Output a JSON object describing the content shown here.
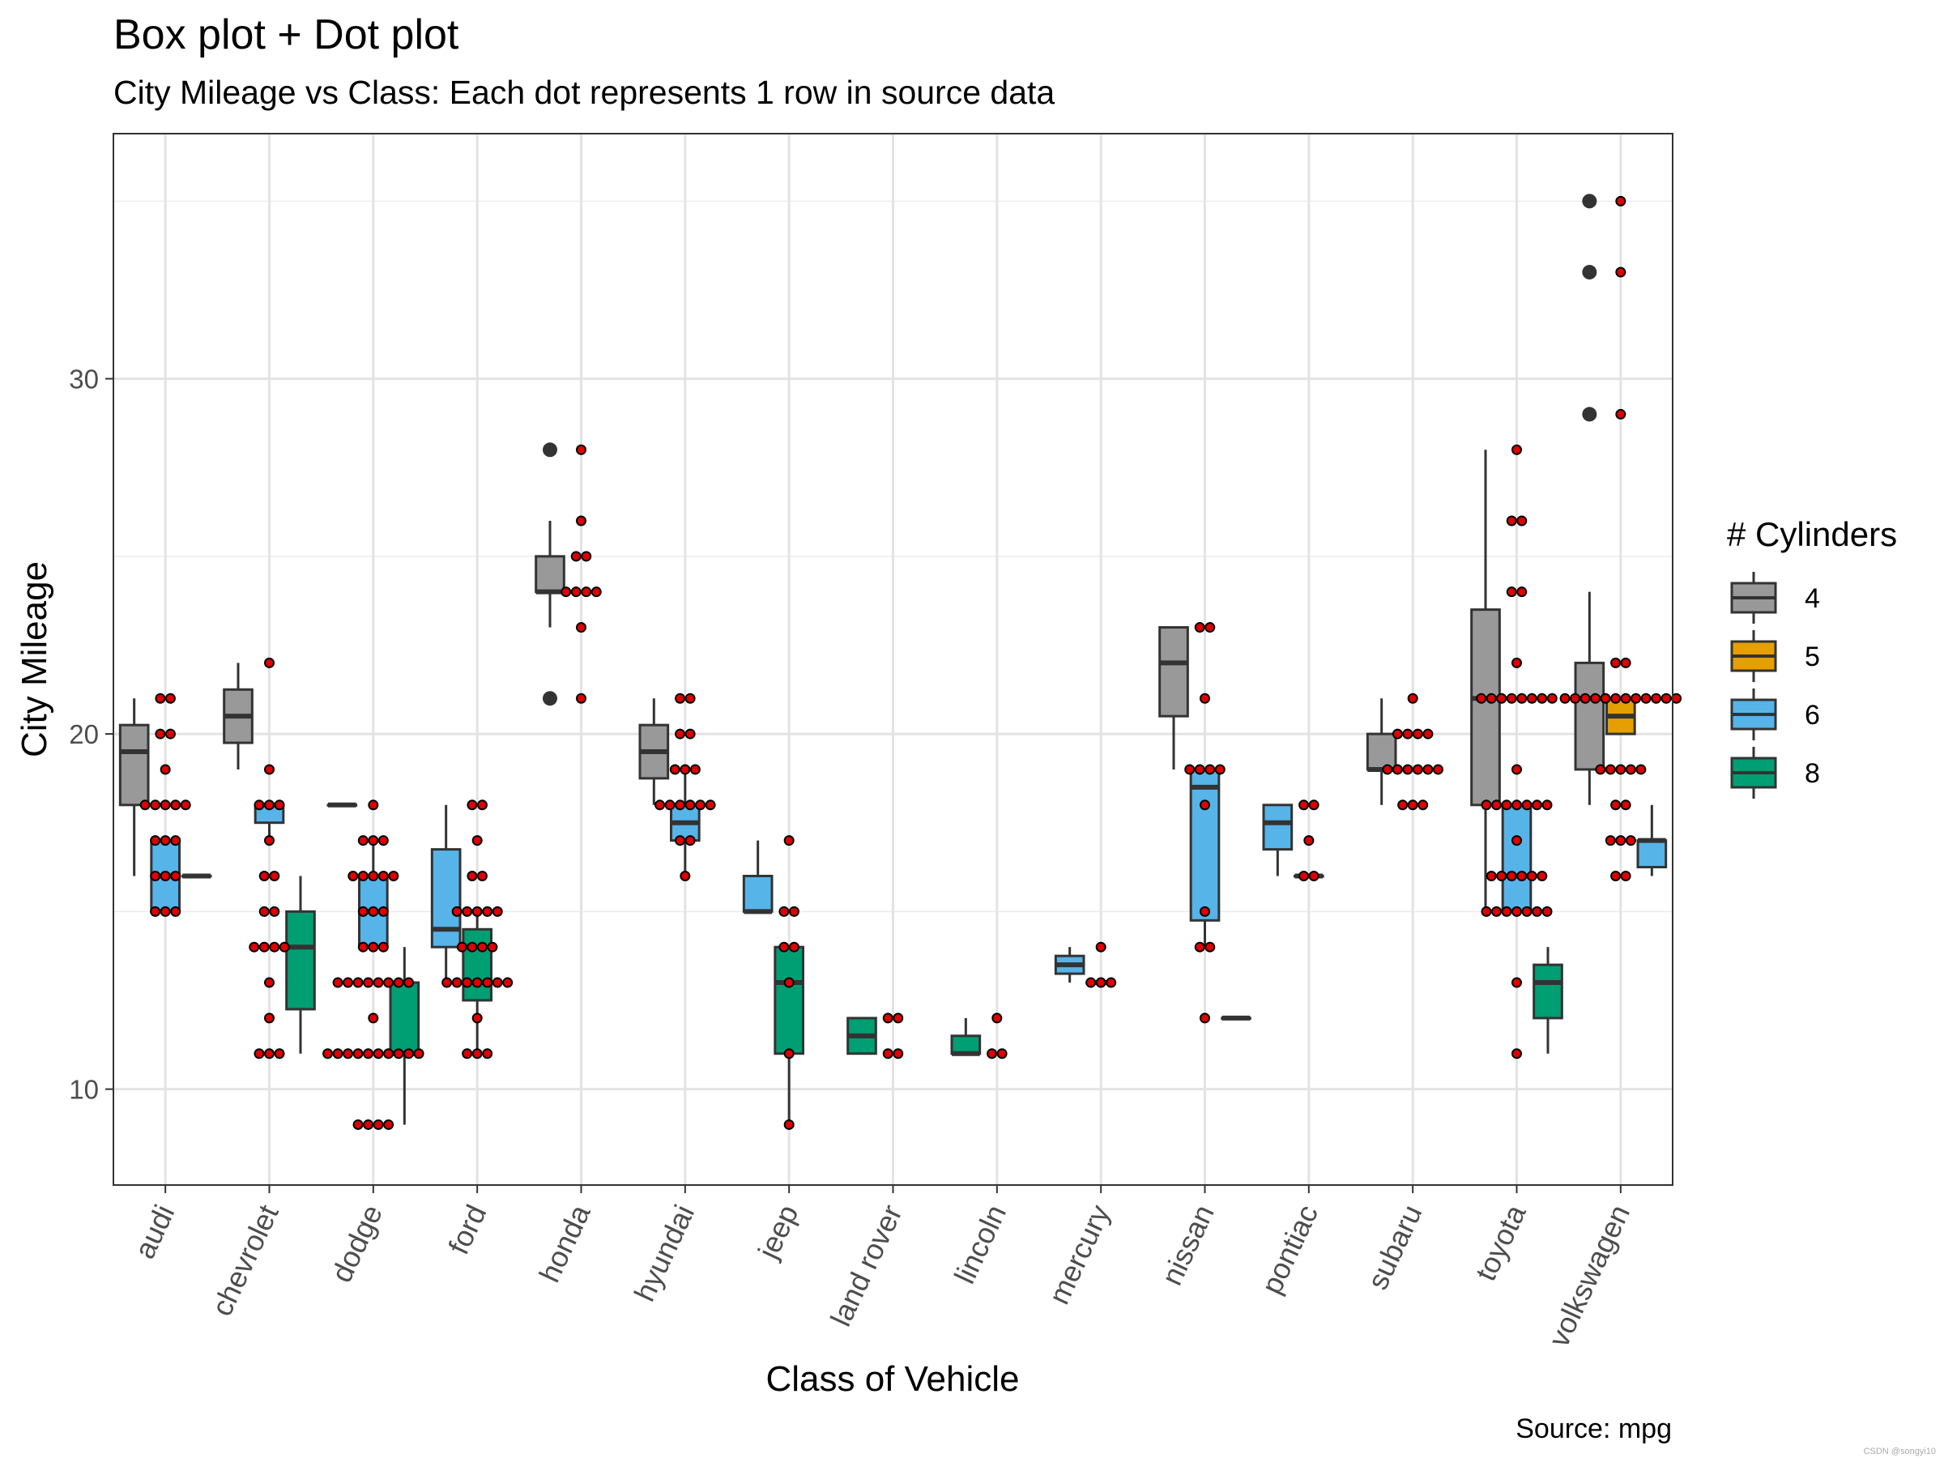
{
  "chart_data": {
    "type": "box",
    "title": "Box plot + Dot plot",
    "subtitle": "City Mileage vs Class: Each dot represents 1 row in source data",
    "caption": "Source: mpg",
    "watermark": "CSDN @songyi10",
    "xlabel": "Class of Vehicle",
    "ylabel": "City Mileage",
    "ylim": [
      7.3,
      36.9
    ],
    "yticks": [
      10,
      20,
      30
    ],
    "ygrid_minor": [
      15,
      25,
      35
    ],
    "categories": [
      "audi",
      "chevrolet",
      "dodge",
      "ford",
      "honda",
      "hyundai",
      "jeep",
      "land rover",
      "lincoln",
      "mercury",
      "nissan",
      "pontiac",
      "subaru",
      "toyota",
      "volkswagen"
    ],
    "legend": {
      "title": "# Cylinders",
      "position": "right",
      "entries": [
        {
          "label": "4",
          "color": "#999999"
        },
        {
          "label": "5",
          "color": "#E69F00"
        },
        {
          "label": "6",
          "color": "#56B4E9"
        },
        {
          "label": "8",
          "color": "#009E73"
        }
      ]
    },
    "colors": {
      "4": "#999999",
      "5": "#E69F00",
      "6": "#56B4E9",
      "8": "#009E73",
      "dot_fill": "#E00000",
      "outline": "#333333"
    },
    "boxes": [
      {
        "category": "audi",
        "cyl": "4",
        "min": 16,
        "q1": 18,
        "median": 19.5,
        "q3": 20.25,
        "max": 21,
        "outliers": []
      },
      {
        "category": "audi",
        "cyl": "6",
        "min": 15,
        "q1": 15,
        "median": 16,
        "q3": 17,
        "max": 17,
        "outliers": []
      },
      {
        "category": "audi",
        "cyl": "8",
        "min": 16,
        "q1": 16,
        "median": 16,
        "q3": 16,
        "max": 16,
        "outliers": []
      },
      {
        "category": "chevrolet",
        "cyl": "4",
        "min": 19,
        "q1": 19.75,
        "median": 20.5,
        "q3": 21.25,
        "max": 22,
        "outliers": []
      },
      {
        "category": "chevrolet",
        "cyl": "6",
        "min": 17,
        "q1": 17.5,
        "median": 18,
        "q3": 18,
        "max": 18,
        "outliers": []
      },
      {
        "category": "chevrolet",
        "cyl": "8",
        "min": 11,
        "q1": 12.25,
        "median": 14,
        "q3": 15,
        "max": 16,
        "outliers": []
      },
      {
        "category": "dodge",
        "cyl": "4",
        "min": 18,
        "q1": 18,
        "median": 18,
        "q3": 18,
        "max": 18,
        "outliers": []
      },
      {
        "category": "dodge",
        "cyl": "6",
        "min": 14,
        "q1": 14,
        "median": 15,
        "q3": 16,
        "max": 17,
        "outliers": []
      },
      {
        "category": "dodge",
        "cyl": "8",
        "min": 9,
        "q1": 11,
        "median": 11,
        "q3": 13,
        "max": 14,
        "outliers": []
      },
      {
        "category": "ford",
        "cyl": "6",
        "min": 13,
        "q1": 14,
        "median": 14.5,
        "q3": 16.75,
        "max": 18,
        "outliers": []
      },
      {
        "category": "ford",
        "cyl": "8",
        "min": 11,
        "q1": 12.5,
        "median": 13,
        "q3": 14.5,
        "max": 15,
        "outliers": []
      },
      {
        "category": "honda",
        "cyl": "4",
        "min": 23,
        "q1": 24,
        "median": 24,
        "q3": 25,
        "max": 26,
        "outliers": [
          21,
          28
        ]
      },
      {
        "category": "hyundai",
        "cyl": "4",
        "min": 18,
        "q1": 18.75,
        "median": 19.5,
        "q3": 20.25,
        "max": 21,
        "outliers": []
      },
      {
        "category": "hyundai",
        "cyl": "6",
        "min": 16,
        "q1": 17,
        "median": 17.5,
        "q3": 18,
        "max": 19,
        "outliers": []
      },
      {
        "category": "jeep",
        "cyl": "6",
        "min": 15,
        "q1": 15,
        "median": 15,
        "q3": 16,
        "max": 17,
        "outliers": []
      },
      {
        "category": "jeep",
        "cyl": "8",
        "min": 9,
        "q1": 11,
        "median": 13,
        "q3": 14,
        "max": 14,
        "outliers": []
      },
      {
        "category": "land rover",
        "cyl": "8",
        "min": 11,
        "q1": 11,
        "median": 11.5,
        "q3": 12,
        "max": 12,
        "outliers": []
      },
      {
        "category": "lincoln",
        "cyl": "8",
        "min": 11,
        "q1": 11,
        "median": 11,
        "q3": 11.5,
        "max": 12,
        "outliers": []
      },
      {
        "category": "mercury",
        "cyl": "6",
        "min": 13,
        "q1": 13.25,
        "median": 13.5,
        "q3": 13.75,
        "max": 14,
        "outliers": []
      },
      {
        "category": "mercury",
        "cyl": "8",
        "min": 13,
        "q1": 13,
        "median": 13,
        "q3": 13,
        "max": 13,
        "outliers": []
      },
      {
        "category": "nissan",
        "cyl": "4",
        "min": 19,
        "q1": 20.5,
        "median": 22,
        "q3": 23,
        "max": 23,
        "outliers": []
      },
      {
        "category": "nissan",
        "cyl": "6",
        "min": 14,
        "q1": 14.75,
        "median": 18.5,
        "q3": 19,
        "max": 19,
        "outliers": []
      },
      {
        "category": "nissan",
        "cyl": "8",
        "min": 12,
        "q1": 12,
        "median": 12,
        "q3": 12,
        "max": 12,
        "outliers": []
      },
      {
        "category": "pontiac",
        "cyl": "6",
        "min": 16,
        "q1": 16.75,
        "median": 17.5,
        "q3": 18,
        "max": 18,
        "outliers": []
      },
      {
        "category": "pontiac",
        "cyl": "8",
        "min": 16,
        "q1": 16,
        "median": 16,
        "q3": 16,
        "max": 16,
        "outliers": []
      },
      {
        "category": "subaru",
        "cyl": "4",
        "min": 18,
        "q1": 19,
        "median": 19,
        "q3": 20,
        "max": 21,
        "outliers": []
      },
      {
        "category": "toyota",
        "cyl": "4",
        "min": 15,
        "q1": 18,
        "median": 21,
        "q3": 23.5,
        "max": 28,
        "outliers": []
      },
      {
        "category": "toyota",
        "cyl": "6",
        "min": 15,
        "q1": 15,
        "median": 16,
        "q3": 18,
        "max": 18,
        "outliers": []
      },
      {
        "category": "toyota",
        "cyl": "8",
        "min": 11,
        "q1": 12,
        "median": 13,
        "q3": 13.5,
        "max": 14,
        "outliers": []
      },
      {
        "category": "volkswagen",
        "cyl": "4",
        "min": 18,
        "q1": 19,
        "median": 21,
        "q3": 22,
        "max": 24,
        "outliers": [
          29,
          33,
          35
        ]
      },
      {
        "category": "volkswagen",
        "cyl": "5",
        "min": 20,
        "q1": 20,
        "median": 20.5,
        "q3": 21,
        "max": 21,
        "outliers": []
      },
      {
        "category": "volkswagen",
        "cyl": "6",
        "min": 16,
        "q1": 16.25,
        "median": 17,
        "q3": 17,
        "max": 18,
        "outliers": []
      }
    ],
    "dots": {
      "audi": [
        15,
        15,
        15,
        16,
        16,
        16,
        17,
        17,
        17,
        18,
        18,
        18,
        18,
        18,
        19,
        20,
        20,
        21,
        21
      ],
      "chevrolet": [
        11,
        11,
        11,
        12,
        13,
        14,
        14,
        14,
        14,
        15,
        15,
        16,
        16,
        17,
        18,
        18,
        18,
        19,
        22
      ],
      "dodge": [
        9,
        9,
        9,
        9,
        11,
        11,
        11,
        11,
        11,
        11,
        11,
        11,
        11,
        11,
        12,
        13,
        13,
        13,
        13,
        13,
        13,
        13,
        13,
        14,
        14,
        14,
        15,
        15,
        15,
        16,
        16,
        16,
        16,
        16,
        17,
        17,
        17,
        18
      ],
      "ford": [
        11,
        11,
        11,
        12,
        13,
        13,
        13,
        13,
        13,
        13,
        13,
        14,
        14,
        14,
        14,
        15,
        15,
        15,
        15,
        15,
        16,
        16,
        17,
        18,
        18
      ],
      "honda": [
        21,
        23,
        24,
        24,
        24,
        24,
        25,
        25,
        26,
        28
      ],
      "hyundai": [
        16,
        17,
        17,
        18,
        18,
        18,
        18,
        18,
        18,
        19,
        19,
        19,
        20,
        20,
        21,
        21
      ],
      "jeep": [
        9,
        11,
        13,
        14,
        14,
        15,
        15,
        17
      ],
      "land rover": [
        11,
        11,
        12,
        12
      ],
      "lincoln": [
        11,
        11,
        12
      ],
      "mercury": [
        13,
        13,
        13,
        14
      ],
      "nissan": [
        12,
        14,
        14,
        15,
        18,
        19,
        19,
        19,
        19,
        21,
        23,
        23
      ],
      "pontiac": [
        16,
        16,
        17,
        18,
        18
      ],
      "subaru": [
        18,
        18,
        18,
        19,
        19,
        19,
        19,
        19,
        19,
        20,
        20,
        20,
        20,
        21
      ],
      "toyota": [
        11,
        13,
        15,
        15,
        15,
        15,
        15,
        15,
        15,
        16,
        16,
        16,
        16,
        16,
        16,
        17,
        18,
        18,
        18,
        18,
        18,
        18,
        18,
        19,
        21,
        21,
        21,
        21,
        21,
        21,
        21,
        21,
        22,
        24,
        24,
        26,
        26,
        28
      ],
      "volkswagen": [
        16,
        16,
        17,
        17,
        17,
        18,
        18,
        19,
        19,
        19,
        19,
        19,
        21,
        21,
        21,
        21,
        21,
        21,
        21,
        21,
        21,
        21,
        21,
        21,
        22,
        22,
        29,
        33,
        35
      ]
    }
  }
}
